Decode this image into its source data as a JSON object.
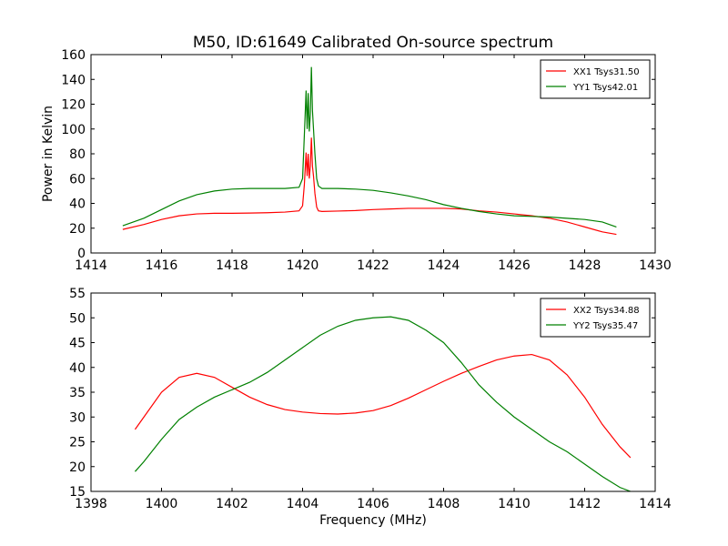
{
  "chart_data": [
    {
      "type": "line",
      "title": "M50, ID:61649 Calibrated On-source spectrum",
      "xlabel": "",
      "ylabel": "Power in Kelvin",
      "xlim": [
        1414,
        1430
      ],
      "ylim": [
        0,
        160
      ],
      "xticks": [
        1414,
        1416,
        1418,
        1420,
        1422,
        1424,
        1426,
        1428,
        1430
      ],
      "yticks": [
        0,
        20,
        40,
        60,
        80,
        100,
        120,
        140,
        160
      ],
      "grid": false,
      "legend": "top-right",
      "series": [
        {
          "name": "XX1 Tsys31.50",
          "color": "#ff0000",
          "x": [
            1414.9,
            1415.5,
            1416.0,
            1416.5,
            1417.0,
            1417.5,
            1418.0,
            1418.5,
            1419.0,
            1419.5,
            1419.9,
            1420.0,
            1420.05,
            1420.1,
            1420.13,
            1420.16,
            1420.19,
            1420.22,
            1420.25,
            1420.28,
            1420.31,
            1420.35,
            1420.4,
            1420.45,
            1420.55,
            1421.0,
            1421.5,
            1422.0,
            1422.5,
            1423.0,
            1423.5,
            1424.0,
            1424.5,
            1425.0,
            1425.5,
            1426.0,
            1426.5,
            1427.0,
            1427.5,
            1428.0,
            1428.5,
            1428.9
          ],
          "values": [
            19,
            23,
            27,
            30,
            31.5,
            32,
            32,
            32.2,
            32.5,
            33,
            34,
            38,
            55,
            81,
            62,
            80,
            60,
            70,
            93,
            70,
            62,
            48,
            37,
            34,
            33.5,
            33.8,
            34.2,
            35,
            35.5,
            36,
            36,
            36,
            35.5,
            34,
            33,
            31.5,
            30,
            28,
            25,
            21,
            17,
            15
          ]
        },
        {
          "name": "YY1 Tsys42.01",
          "color": "#008000",
          "x": [
            1414.9,
            1415.5,
            1416.0,
            1416.5,
            1417.0,
            1417.5,
            1418.0,
            1418.5,
            1419.0,
            1419.5,
            1419.9,
            1420.0,
            1420.05,
            1420.1,
            1420.13,
            1420.16,
            1420.19,
            1420.22,
            1420.25,
            1420.28,
            1420.31,
            1420.35,
            1420.4,
            1420.45,
            1420.55,
            1421.0,
            1421.5,
            1422.0,
            1422.5,
            1423.0,
            1423.5,
            1424.0,
            1424.5,
            1425.0,
            1425.5,
            1426.0,
            1426.5,
            1427.0,
            1427.5,
            1428.0,
            1428.5,
            1428.9
          ],
          "values": [
            22,
            28,
            35,
            42,
            47,
            50,
            51.5,
            52,
            52,
            52,
            53,
            60,
            95,
            131,
            100,
            129,
            98,
            112,
            150,
            115,
            100,
            80,
            60,
            54,
            52,
            52,
            51.5,
            50.5,
            48.5,
            46,
            43,
            39,
            36,
            33.5,
            31.5,
            30,
            29.5,
            29,
            28,
            27,
            25,
            21
          ]
        }
      ]
    },
    {
      "type": "line",
      "title": "",
      "xlabel": "Frequency (MHz)",
      "ylabel": "",
      "xlim": [
        1398,
        1414
      ],
      "ylim": [
        15,
        55
      ],
      "xticks": [
        1398,
        1400,
        1402,
        1404,
        1406,
        1408,
        1410,
        1412,
        1414
      ],
      "yticks": [
        15,
        20,
        25,
        30,
        35,
        40,
        45,
        50,
        55
      ],
      "grid": false,
      "legend": "top-right",
      "series": [
        {
          "name": "XX2 Tsys34.88",
          "color": "#ff0000",
          "x": [
            1399.25,
            1399.5,
            1400.0,
            1400.5,
            1401.0,
            1401.5,
            1402.0,
            1402.5,
            1403.0,
            1403.5,
            1404.0,
            1404.5,
            1405.0,
            1405.5,
            1406.0,
            1406.5,
            1407.0,
            1407.5,
            1408.0,
            1408.5,
            1409.0,
            1409.5,
            1410.0,
            1410.5,
            1411.0,
            1411.5,
            1412.0,
            1412.5,
            1413.0,
            1413.3
          ],
          "values": [
            27.5,
            30,
            35,
            38,
            38.8,
            38,
            36,
            34,
            32.5,
            31.5,
            31,
            30.7,
            30.6,
            30.8,
            31.3,
            32.3,
            33.8,
            35.5,
            37.2,
            38.8,
            40.2,
            41.5,
            42.3,
            42.6,
            41.5,
            38.5,
            34,
            28.5,
            24,
            21.8
          ]
        },
        {
          "name": "YY2 Tsys35.47",
          "color": "#008000",
          "x": [
            1399.25,
            1399.5,
            1400.0,
            1400.5,
            1401.0,
            1401.5,
            1402.0,
            1402.5,
            1403.0,
            1403.5,
            1404.0,
            1404.5,
            1405.0,
            1405.5,
            1406.0,
            1406.5,
            1407.0,
            1407.5,
            1408.0,
            1408.5,
            1409.0,
            1409.5,
            1410.0,
            1410.5,
            1411.0,
            1411.5,
            1412.0,
            1412.5,
            1413.0,
            1413.3
          ],
          "values": [
            19,
            21,
            25.5,
            29.5,
            32,
            34,
            35.5,
            37,
            39,
            41.5,
            44,
            46.5,
            48.3,
            49.5,
            50,
            50.2,
            49.5,
            47.5,
            45,
            41,
            36.5,
            33,
            30,
            27.5,
            25,
            23,
            20.5,
            18,
            15.8,
            15
          ]
        }
      ]
    }
  ]
}
